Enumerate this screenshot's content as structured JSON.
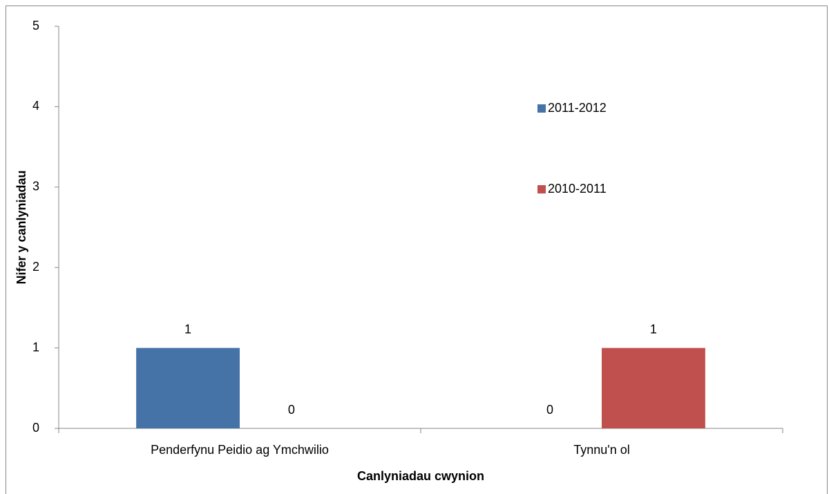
{
  "chart_data": {
    "type": "bar",
    "categories": [
      "Penderfynu Peidio ag Ymchwilio",
      "Tynnu'n ol"
    ],
    "series": [
      {
        "name": "2011-2012",
        "color": "#4572a7",
        "values": [
          1,
          0
        ]
      },
      {
        "name": "2010-2011",
        "color": "#c0504d",
        "values": [
          0,
          1
        ]
      }
    ],
    "x_label": "Canlyniadau cwynion",
    "y_label": "Nifer y canlyniadau",
    "ylim": [
      0,
      5
    ],
    "yticks": [
      0,
      1,
      2,
      3,
      4,
      5
    ],
    "grid": false,
    "legend": "right",
    "data_labels": true
  }
}
